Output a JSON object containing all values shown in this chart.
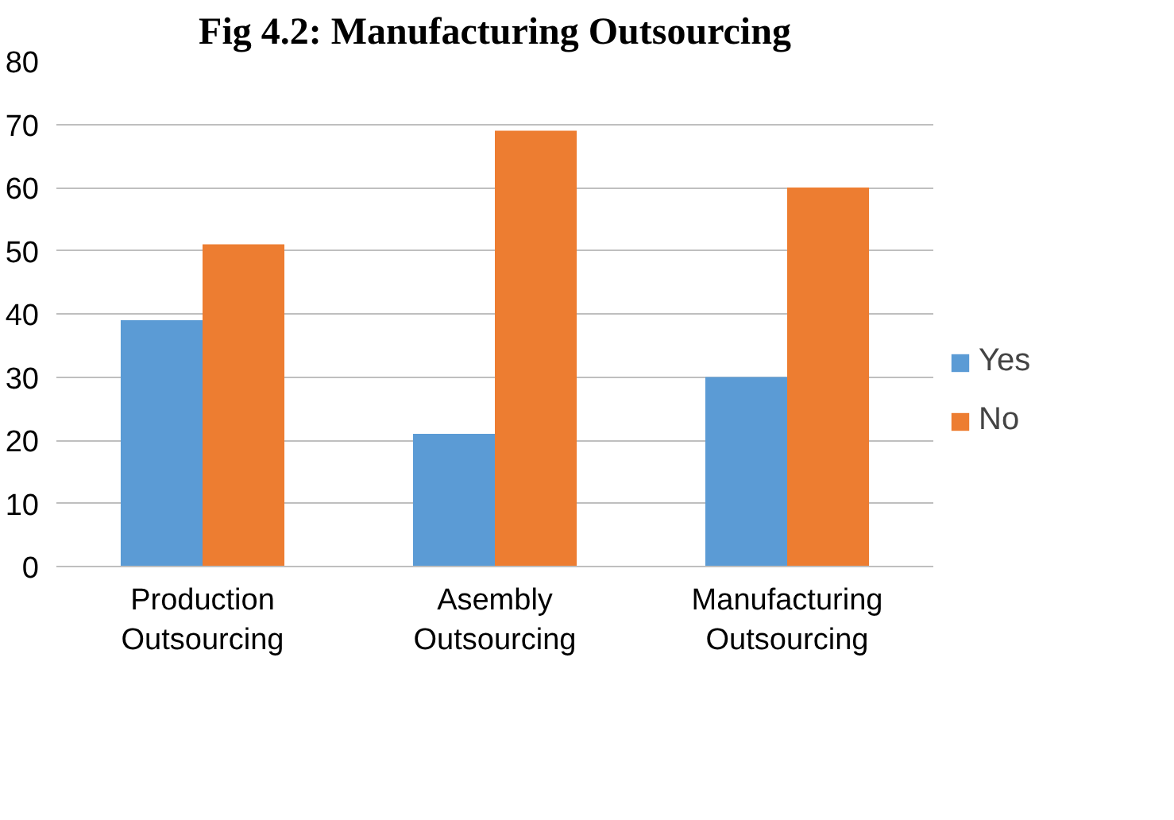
{
  "chart_data": {
    "type": "bar",
    "title": "Fig 4.2: Manufacturing Outsourcing",
    "categories": [
      "Production Outsourcing",
      "Asembly Outsourcing",
      "Manufacturing Outsourcing"
    ],
    "series": [
      {
        "name": "Yes",
        "color": "#5b9bd5",
        "values": [
          39,
          21,
          30
        ]
      },
      {
        "name": "No",
        "color": "#ed7d31",
        "values": [
          51,
          69,
          60
        ]
      }
    ],
    "ylim": [
      0,
      80
    ],
    "yticks": [
      0,
      10,
      20,
      30,
      40,
      50,
      60,
      70,
      80
    ],
    "grid": "y",
    "legend": "right"
  }
}
